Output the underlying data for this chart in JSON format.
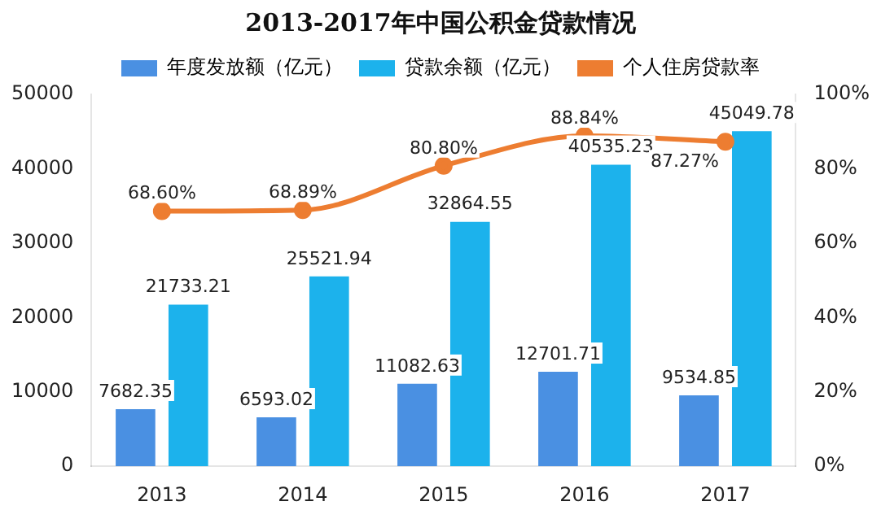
{
  "chart_data": {
    "type": "bar",
    "title": "2013-2017年中国公积金贷款情况",
    "categories": [
      "2013",
      "2014",
      "2015",
      "2016",
      "2017"
    ],
    "series": [
      {
        "name": "年度发放额（亿元）",
        "color": "#4a90e2",
        "values": [
          7682.35,
          6593.02,
          11082.63,
          12701.71,
          9534.85
        ],
        "value_labels": [
          "7682.35",
          "6593.02",
          "11082.63",
          "12701.71",
          "9534.85"
        ]
      },
      {
        "name": "贷款余额（亿元）",
        "color": "#1cb2ec",
        "values": [
          21733.21,
          25521.94,
          32864.55,
          40535.23,
          45049.78
        ],
        "value_labels": [
          "21733.21",
          "25521.94",
          "32864.55",
          "40535.23",
          "45049.78"
        ]
      },
      {
        "name": "个人住房贷款率",
        "type": "line",
        "axis": "y2",
        "color": "#ed7d31",
        "values": [
          68.6,
          68.89,
          80.8,
          88.84,
          87.27
        ],
        "value_labels": [
          "68.60%",
          "68.89%",
          "80.80%",
          "88.84%",
          "87.27%"
        ]
      }
    ],
    "ylim": [
      0,
      50000
    ],
    "yticks": [
      0,
      10000,
      20000,
      30000,
      40000,
      50000
    ],
    "y2lim": [
      0,
      100
    ],
    "y2ticks": [
      {
        "value": 0,
        "label": "0%"
      },
      {
        "value": 20,
        "label": "20%"
      },
      {
        "value": 40,
        "label": "40%"
      },
      {
        "value": 60,
        "label": "60%"
      },
      {
        "value": 80,
        "label": "80%"
      },
      {
        "value": 100,
        "label": "100%"
      }
    ],
    "grid": false,
    "legend": "top",
    "marker": "circle",
    "line_style": "solid"
  }
}
